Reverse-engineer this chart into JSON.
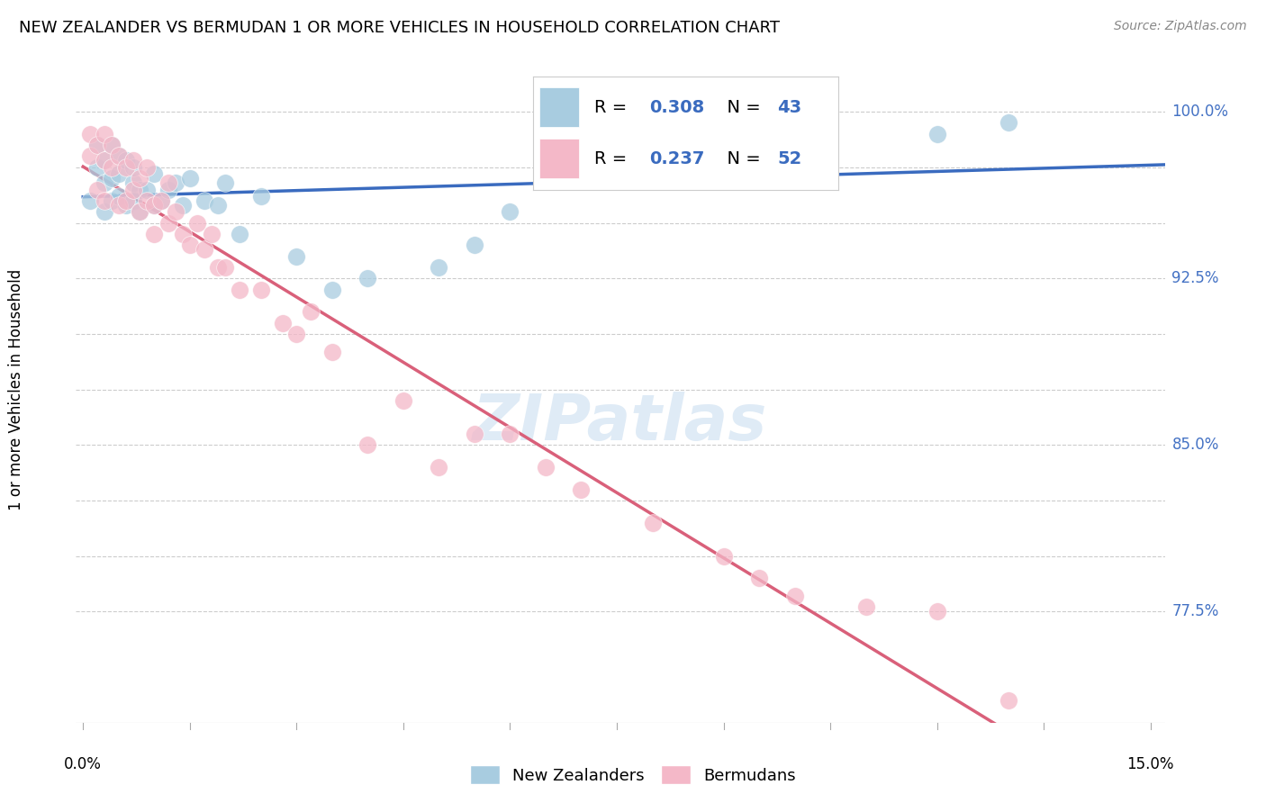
{
  "title": "NEW ZEALANDER VS BERMUDAN 1 OR MORE VEHICLES IN HOUSEHOLD CORRELATION CHART",
  "source": "Source: ZipAtlas.com",
  "ylabel": "1 or more Vehicles in Household",
  "ylim": [
    0.725,
    1.025
  ],
  "xlim": [
    -0.001,
    0.152
  ],
  "ytick_vals": [
    0.775,
    0.8,
    0.825,
    0.85,
    0.875,
    0.9,
    0.925,
    0.95,
    0.975,
    1.0
  ],
  "ytick_labels": [
    "77.5%",
    "",
    "",
    "85.0%",
    "",
    "",
    "92.5%",
    "",
    "",
    "100.0%"
  ],
  "r_nz": 0.308,
  "n_nz": 43,
  "r_bm": 0.237,
  "n_bm": 52,
  "color_nz": "#a8cce0",
  "color_bm": "#f4b8c8",
  "line_color_nz": "#3a6bbf",
  "line_color_bm": "#d9607a",
  "legend_nz": "New Zealanders",
  "legend_bm": "Bermudans",
  "nz_x": [
    0.001,
    0.002,
    0.002,
    0.003,
    0.003,
    0.003,
    0.004,
    0.004,
    0.004,
    0.005,
    0.005,
    0.005,
    0.006,
    0.006,
    0.007,
    0.007,
    0.007,
    0.008,
    0.008,
    0.009,
    0.01,
    0.01,
    0.011,
    0.012,
    0.013,
    0.014,
    0.015,
    0.017,
    0.019,
    0.02,
    0.022,
    0.025,
    0.03,
    0.035,
    0.04,
    0.05,
    0.055,
    0.06,
    0.07,
    0.08,
    0.1,
    0.12,
    0.13
  ],
  "nz_y": [
    0.96,
    0.975,
    0.985,
    0.955,
    0.968,
    0.978,
    0.96,
    0.97,
    0.985,
    0.962,
    0.972,
    0.98,
    0.958,
    0.978,
    0.96,
    0.968,
    0.975,
    0.955,
    0.965,
    0.965,
    0.958,
    0.972,
    0.96,
    0.965,
    0.968,
    0.958,
    0.97,
    0.96,
    0.958,
    0.968,
    0.945,
    0.962,
    0.935,
    0.92,
    0.925,
    0.93,
    0.94,
    0.955,
    0.97,
    0.985,
    0.99,
    0.99,
    0.995
  ],
  "bm_x": [
    0.001,
    0.001,
    0.002,
    0.002,
    0.003,
    0.003,
    0.003,
    0.004,
    0.004,
    0.005,
    0.005,
    0.006,
    0.006,
    0.007,
    0.007,
    0.008,
    0.008,
    0.009,
    0.009,
    0.01,
    0.01,
    0.011,
    0.012,
    0.012,
    0.013,
    0.014,
    0.015,
    0.016,
    0.017,
    0.018,
    0.019,
    0.02,
    0.022,
    0.025,
    0.028,
    0.03,
    0.032,
    0.035,
    0.04,
    0.045,
    0.05,
    0.055,
    0.06,
    0.065,
    0.07,
    0.08,
    0.09,
    0.095,
    0.1,
    0.11,
    0.12,
    0.13
  ],
  "bm_y": [
    0.99,
    0.98,
    0.985,
    0.965,
    0.99,
    0.978,
    0.96,
    0.985,
    0.975,
    0.98,
    0.958,
    0.975,
    0.96,
    0.978,
    0.965,
    0.97,
    0.955,
    0.975,
    0.96,
    0.958,
    0.945,
    0.96,
    0.968,
    0.95,
    0.955,
    0.945,
    0.94,
    0.95,
    0.938,
    0.945,
    0.93,
    0.93,
    0.92,
    0.92,
    0.905,
    0.9,
    0.91,
    0.892,
    0.85,
    0.87,
    0.84,
    0.855,
    0.855,
    0.84,
    0.83,
    0.815,
    0.8,
    0.79,
    0.782,
    0.777,
    0.775,
    0.735
  ]
}
